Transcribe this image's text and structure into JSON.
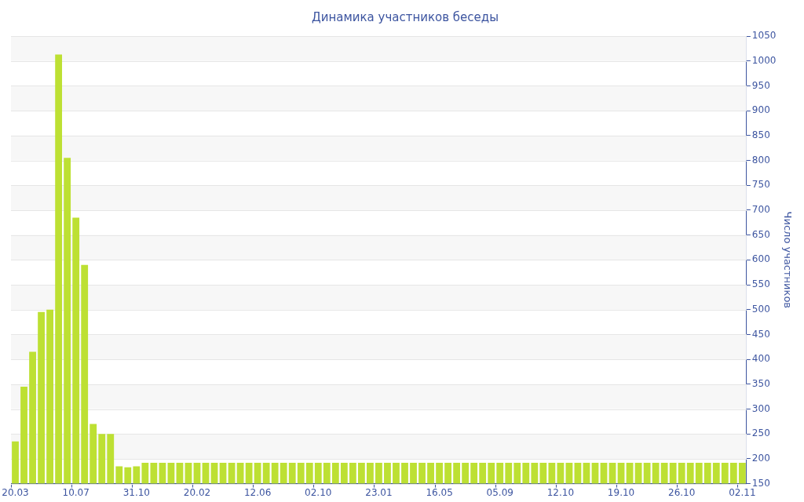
{
  "chart_data": {
    "type": "bar",
    "title": "Динамика участников беседы",
    "ylabel": "Число участников",
    "categories": [
      "20.03",
      null,
      null,
      null,
      null,
      null,
      null,
      "10.07",
      null,
      null,
      null,
      null,
      null,
      null,
      "31.10",
      null,
      null,
      null,
      null,
      null,
      null,
      "20.02",
      null,
      null,
      null,
      null,
      null,
      null,
      "12.06",
      null,
      null,
      null,
      null,
      null,
      null,
      "02.10",
      null,
      null,
      null,
      null,
      null,
      null,
      "23.01",
      null,
      null,
      null,
      null,
      null,
      null,
      "16.05",
      null,
      null,
      null,
      null,
      null,
      null,
      "05.09",
      null,
      null,
      null,
      null,
      null,
      null,
      "12.10",
      null,
      null,
      null,
      null,
      null,
      null,
      "19.10",
      null,
      null,
      null,
      null,
      null,
      null,
      "26.10",
      null,
      null,
      null,
      null,
      null,
      null,
      "02.11"
    ],
    "values": [
      235,
      345,
      415,
      495,
      500,
      1013,
      805,
      685,
      590,
      270,
      250,
      250,
      185,
      183,
      185,
      192,
      192,
      192,
      192,
      192,
      192,
      192,
      192,
      192,
      192,
      192,
      192,
      192,
      192,
      192,
      192,
      192,
      192,
      192,
      192,
      192,
      192,
      192,
      192,
      192,
      192,
      192,
      192,
      192,
      192,
      192,
      192,
      192,
      192,
      192,
      192,
      192,
      192,
      192,
      192,
      192,
      192,
      192,
      192,
      192,
      192,
      192,
      192,
      192,
      192,
      192,
      192,
      192,
      192,
      192,
      192,
      192,
      192,
      192,
      192,
      192,
      192,
      192,
      192,
      192,
      192,
      192,
      192,
      192,
      192
    ],
    "color": "#bde033",
    "ylim": [
      150,
      1050
    ],
    "yticks": [
      150,
      200,
      250,
      300,
      350,
      400,
      450,
      500,
      550,
      600,
      650,
      700,
      750,
      800,
      850,
      900,
      950,
      1000,
      1050
    ],
    "grid": "y",
    "legend": false
  }
}
